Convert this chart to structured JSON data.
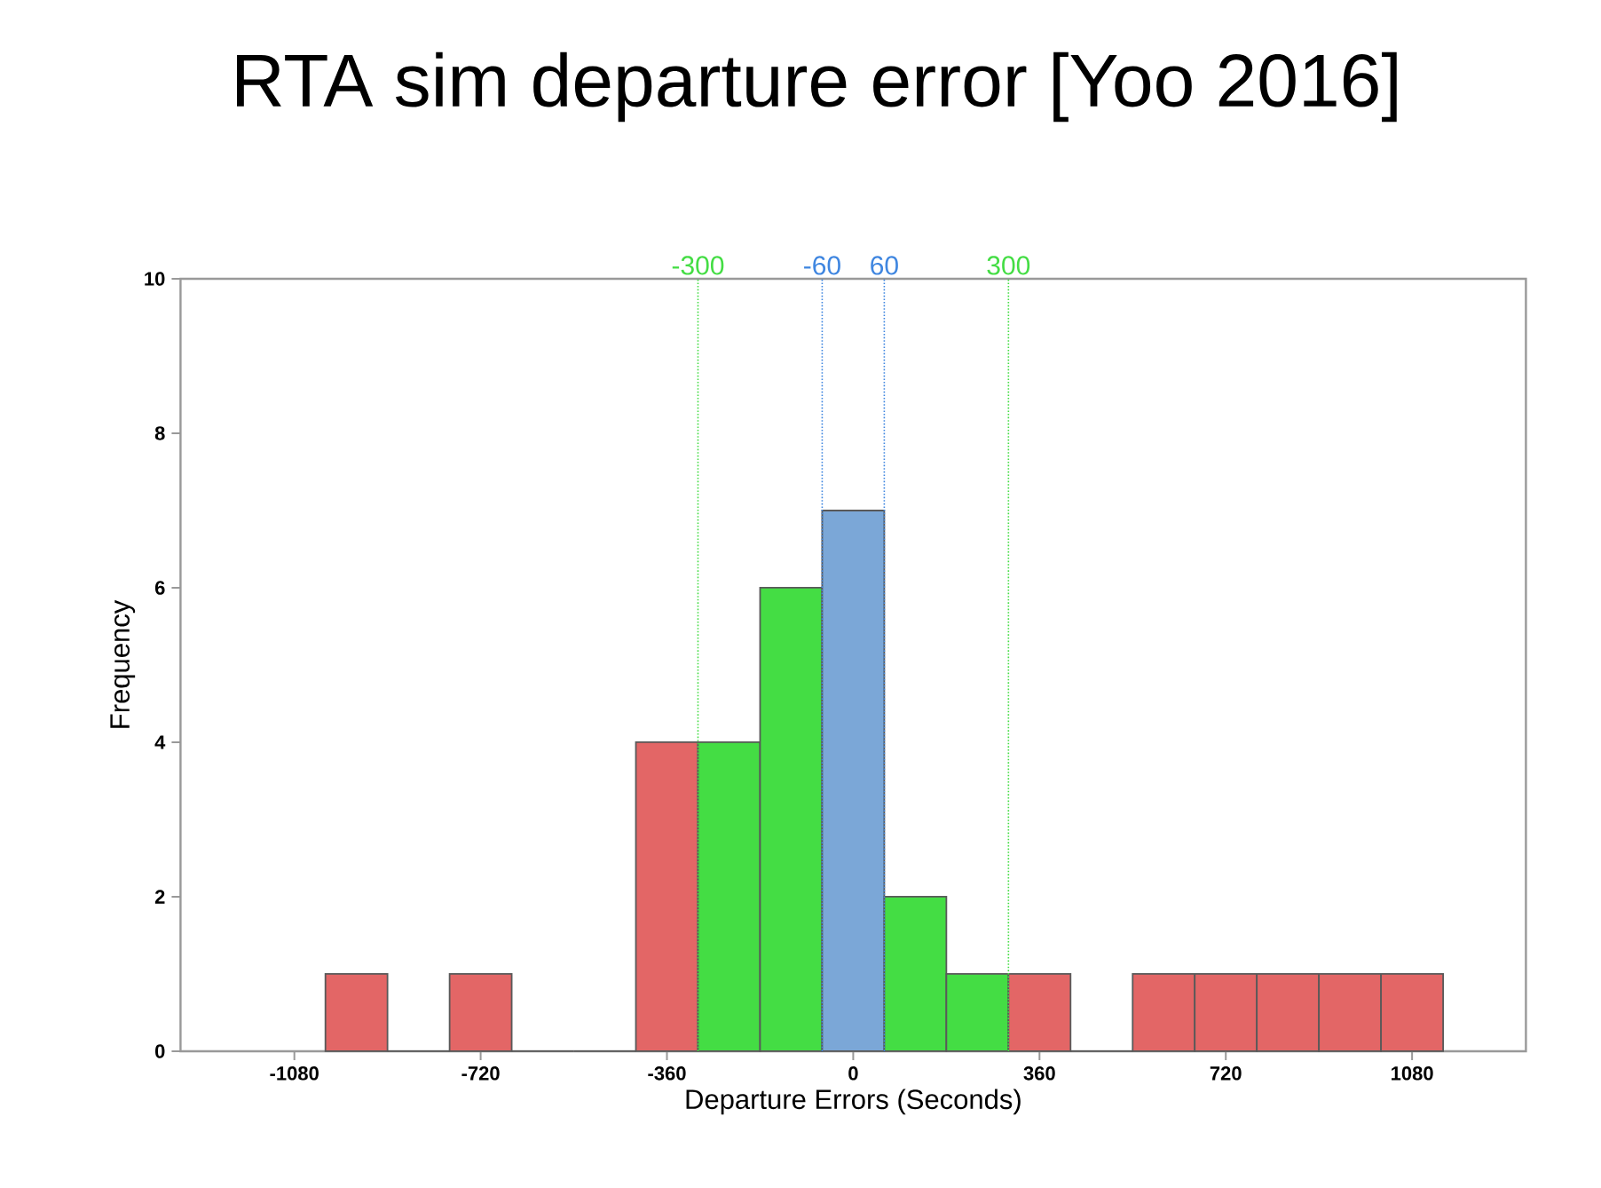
{
  "chart_data": {
    "type": "histogram",
    "title": "RTA sim departure error [Yoo 2016]",
    "xlabel": "Departure Errors (Seconds)",
    "ylabel": "Frequency",
    "bins": [
      -1020,
      -900,
      -780,
      -660,
      -540,
      -420,
      -300,
      -180,
      -60,
      60,
      180,
      300,
      420,
      540,
      660,
      780,
      900,
      1020,
      1140
    ],
    "values": [
      1,
      0,
      1,
      0,
      0,
      4,
      4,
      6,
      7,
      2,
      1,
      1,
      0,
      1,
      1,
      1,
      1,
      1
    ],
    "colors": [
      "#e36666",
      "#e36666",
      "#e36666",
      "#e36666",
      "#e36666",
      "#e36666",
      "#44dd44",
      "#44dd44",
      "#7ba7d7",
      "#44dd44",
      "#44dd44",
      "#e36666",
      "#e36666",
      "#e36666",
      "#e36666",
      "#e36666",
      "#e36666",
      "#e36666"
    ],
    "xlim": [
      -1300,
      1300
    ],
    "ylim": [
      0,
      10
    ],
    "xticks": [
      -1080,
      -720,
      -360,
      0,
      360,
      720,
      1080
    ],
    "yticks": [
      0,
      2,
      4,
      6,
      8,
      10
    ],
    "grid": false,
    "ref_lines": [
      {
        "axis": "x",
        "value": -300,
        "label": "-300",
        "color": "#44dd44",
        "line_style": "dotted"
      },
      {
        "axis": "x",
        "value": -60,
        "label": "-60",
        "color": "#3f86e0",
        "line_style": "dotted"
      },
      {
        "axis": "x",
        "value": 60,
        "label": "60",
        "color": "#3f86e0",
        "line_style": "dotted"
      },
      {
        "axis": "x",
        "value": 300,
        "label": "300",
        "color": "#44dd44",
        "line_style": "dotted"
      }
    ]
  }
}
